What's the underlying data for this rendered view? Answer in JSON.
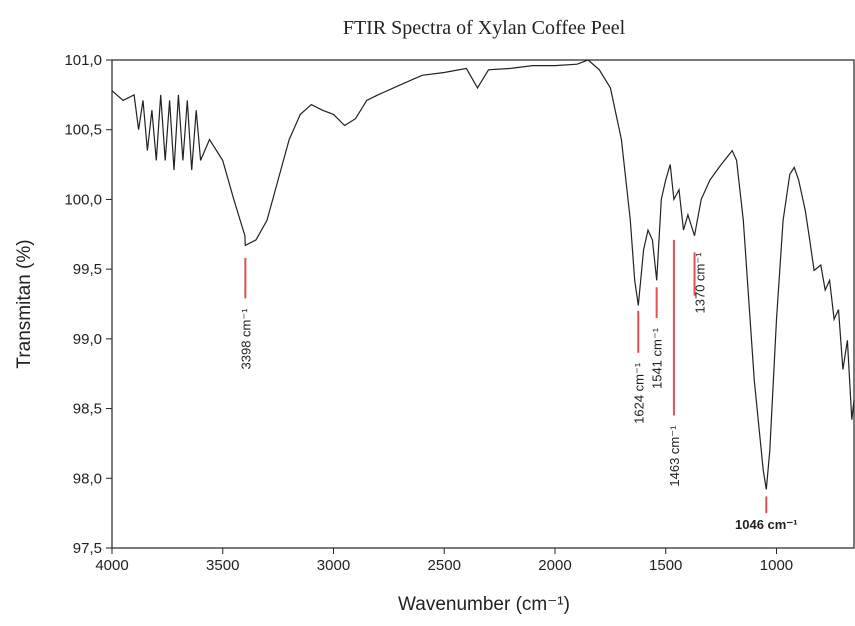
{
  "chart_data": {
    "type": "line",
    "title": "FTIR Spectra of Xylan Coffee Peel",
    "x_label": "Wavenumber (cm⁻¹)",
    "y_label": "Transmitan (%)",
    "xlim": [
      4000,
      650
    ],
    "ylim": [
      97.5,
      101.0
    ],
    "xticks": [
      4000,
      3500,
      3000,
      2500,
      2000,
      1500,
      1000
    ],
    "yticks": [
      {
        "value": 97.5,
        "label": "97,5"
      },
      {
        "value": 98.0,
        "label": "98,0"
      },
      {
        "value": 98.5,
        "label": "98,5"
      },
      {
        "value": 99.0,
        "label": "99,0"
      },
      {
        "value": 99.5,
        "label": "99,5"
      },
      {
        "value": 100.0,
        "label": "100,0"
      },
      {
        "value": 100.5,
        "label": "100,5"
      },
      {
        "value": 101.0,
        "label": "101,0"
      }
    ],
    "series": [
      {
        "color": "#222222",
        "x": [
          4000,
          3950,
          3900,
          3880,
          3860,
          3840,
          3820,
          3800,
          3780,
          3760,
          3740,
          3720,
          3700,
          3680,
          3660,
          3640,
          3620,
          3600,
          3560,
          3500,
          3450,
          3400,
          3398,
          3350,
          3300,
          3250,
          3200,
          3150,
          3100,
          3050,
          3000,
          2950,
          2900,
          2850,
          2800,
          2700,
          2600,
          2500,
          2400,
          2350,
          2300,
          2200,
          2100,
          2000,
          1900,
          1850,
          1800,
          1750,
          1700,
          1660,
          1640,
          1624,
          1600,
          1580,
          1560,
          1541,
          1520,
          1500,
          1480,
          1463,
          1440,
          1420,
          1400,
          1370,
          1340,
          1300,
          1250,
          1200,
          1180,
          1150,
          1100,
          1060,
          1046,
          1030,
          1000,
          970,
          940,
          920,
          900,
          870,
          850,
          830,
          800,
          780,
          760,
          740,
          720,
          700,
          680,
          660,
          650
        ],
        "values": [
          100.78,
          100.71,
          100.75,
          100.5,
          100.71,
          100.35,
          100.64,
          100.28,
          100.75,
          100.28,
          100.71,
          100.21,
          100.75,
          100.28,
          100.71,
          100.21,
          100.64,
          100.28,
          100.43,
          100.28,
          100.0,
          99.74,
          99.67,
          99.71,
          99.85,
          100.14,
          100.43,
          100.61,
          100.68,
          100.64,
          100.61,
          100.53,
          100.58,
          100.71,
          100.75,
          100.82,
          100.89,
          100.91,
          100.94,
          100.8,
          100.93,
          100.94,
          100.96,
          100.96,
          100.97,
          101.0,
          100.93,
          100.8,
          100.43,
          99.85,
          99.42,
          99.24,
          99.64,
          99.78,
          99.71,
          99.42,
          100.0,
          100.14,
          100.25,
          100.0,
          100.07,
          99.78,
          99.89,
          99.74,
          100.0,
          100.14,
          100.25,
          100.35,
          100.28,
          99.85,
          98.7,
          98.06,
          97.92,
          98.2,
          99.14,
          99.85,
          100.18,
          100.23,
          100.14,
          99.92,
          99.71,
          99.49,
          99.53,
          99.35,
          99.42,
          99.14,
          99.21,
          98.78,
          98.99,
          98.42,
          98.56
        ]
      }
    ],
    "annotations": [
      {
        "label": "3398 cm⁻¹",
        "x": 3398,
        "y": [
          99.58,
          99.29
        ]
      },
      {
        "label": "1624 cm⁻¹",
        "x": 1624,
        "y": [
          99.2,
          98.9
        ]
      },
      {
        "label": "1541 cm⁻¹",
        "x": 1541,
        "y": [
          99.37,
          99.15
        ]
      },
      {
        "label": "1463 cm⁻¹",
        "x": 1463,
        "y": [
          99.71,
          98.45
        ]
      },
      {
        "label": "1370 cm⁻¹",
        "x": 1370,
        "y": [
          99.62,
          99.31
        ]
      },
      {
        "label": "1046 cm⁻¹",
        "x": 1046,
        "y": [
          97.87,
          97.75
        ]
      }
    ]
  }
}
